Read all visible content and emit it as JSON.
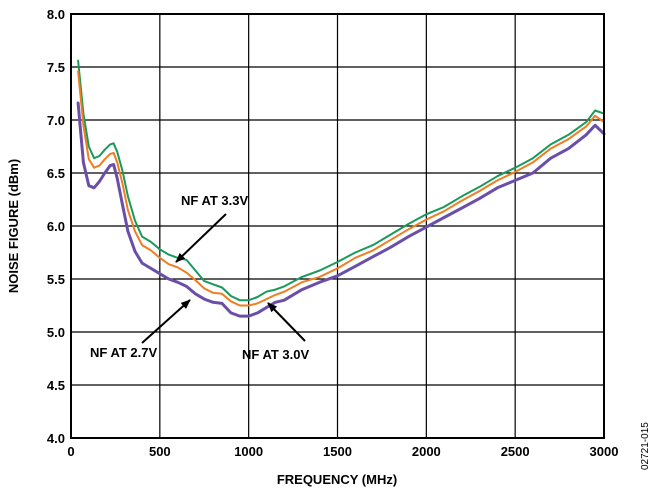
{
  "chart_data": {
    "type": "line",
    "title": "",
    "xlabel": "FREQUENCY (MHz)",
    "ylabel": "NOISE FIGURE (dBm)",
    "xlim": [
      0,
      3000
    ],
    "ylim": [
      4.0,
      8.0
    ],
    "xticks": [
      0,
      500,
      1000,
      1500,
      2000,
      2500,
      3000
    ],
    "yticks": [
      4.0,
      4.5,
      5.0,
      5.5,
      6.0,
      6.5,
      7.0,
      7.5,
      8.0
    ],
    "grid": true,
    "legend": "none",
    "series": [
      {
        "key": "v33",
        "color": "#1a9a5a",
        "x": [
          40,
          70,
          100,
          130,
          160,
          190,
          220,
          240,
          260,
          290,
          320,
          360,
          400,
          450,
          500,
          550,
          600,
          650,
          700,
          750,
          800,
          850,
          900,
          950,
          1000,
          1050,
          1100,
          1150,
          1200,
          1300,
          1400,
          1500,
          1600,
          1700,
          1800,
          1900,
          2000,
          2100,
          2200,
          2300,
          2400,
          2500,
          2600,
          2700,
          2800,
          2900,
          2950,
          3000
        ],
        "values": [
          7.56,
          7.06,
          6.75,
          6.64,
          6.66,
          6.72,
          6.77,
          6.78,
          6.7,
          6.52,
          6.28,
          6.05,
          5.9,
          5.85,
          5.78,
          5.73,
          5.7,
          5.68,
          5.58,
          5.48,
          5.45,
          5.42,
          5.34,
          5.3,
          5.3,
          5.33,
          5.38,
          5.4,
          5.43,
          5.52,
          5.58,
          5.66,
          5.75,
          5.82,
          5.92,
          6.02,
          6.11,
          6.18,
          6.28,
          6.37,
          6.47,
          6.55,
          6.64,
          6.77,
          6.86,
          6.98,
          7.09,
          7.06
        ]
      },
      {
        "key": "v30",
        "color": "#ef7d22",
        "x": [
          40,
          70,
          100,
          130,
          160,
          190,
          220,
          240,
          260,
          290,
          320,
          360,
          400,
          450,
          500,
          550,
          600,
          650,
          700,
          750,
          800,
          850,
          900,
          950,
          1000,
          1050,
          1100,
          1150,
          1200,
          1300,
          1400,
          1500,
          1600,
          1700,
          1800,
          1900,
          2000,
          2100,
          2200,
          2300,
          2400,
          2500,
          2600,
          2700,
          2800,
          2900,
          2950,
          3000
        ],
        "values": [
          7.46,
          6.95,
          6.63,
          6.55,
          6.57,
          6.63,
          6.68,
          6.69,
          6.6,
          6.4,
          6.15,
          5.95,
          5.82,
          5.77,
          5.7,
          5.64,
          5.61,
          5.56,
          5.49,
          5.41,
          5.37,
          5.36,
          5.29,
          5.25,
          5.25,
          5.27,
          5.31,
          5.35,
          5.38,
          5.47,
          5.52,
          5.6,
          5.7,
          5.77,
          5.87,
          5.97,
          6.06,
          6.14,
          6.24,
          6.33,
          6.43,
          6.51,
          6.6,
          6.73,
          6.82,
          6.94,
          7.04,
          6.98
        ]
      },
      {
        "key": "v27",
        "color": "#6a4fa8",
        "x": [
          40,
          70,
          100,
          130,
          160,
          190,
          220,
          240,
          260,
          290,
          320,
          360,
          400,
          450,
          500,
          550,
          600,
          650,
          700,
          750,
          800,
          850,
          900,
          950,
          1000,
          1050,
          1100,
          1150,
          1200,
          1300,
          1400,
          1500,
          1600,
          1700,
          1800,
          1900,
          2000,
          2100,
          2200,
          2300,
          2400,
          2500,
          2600,
          2700,
          2800,
          2900,
          2950,
          3000
        ],
        "values": [
          7.16,
          6.6,
          6.38,
          6.36,
          6.42,
          6.5,
          6.57,
          6.58,
          6.45,
          6.2,
          5.95,
          5.76,
          5.65,
          5.6,
          5.55,
          5.5,
          5.47,
          5.43,
          5.36,
          5.31,
          5.28,
          5.27,
          5.18,
          5.15,
          5.15,
          5.18,
          5.23,
          5.28,
          5.3,
          5.4,
          5.47,
          5.53,
          5.62,
          5.71,
          5.8,
          5.9,
          5.99,
          6.08,
          6.17,
          6.26,
          6.36,
          6.43,
          6.5,
          6.64,
          6.73,
          6.86,
          6.95,
          6.87
        ]
      }
    ],
    "annotations": [
      {
        "text": "NF AT 3.3V"
      },
      {
        "text": "NF AT 2.7V"
      },
      {
        "text": "NF AT 3.0V"
      }
    ],
    "figure_id": "02721-015"
  }
}
